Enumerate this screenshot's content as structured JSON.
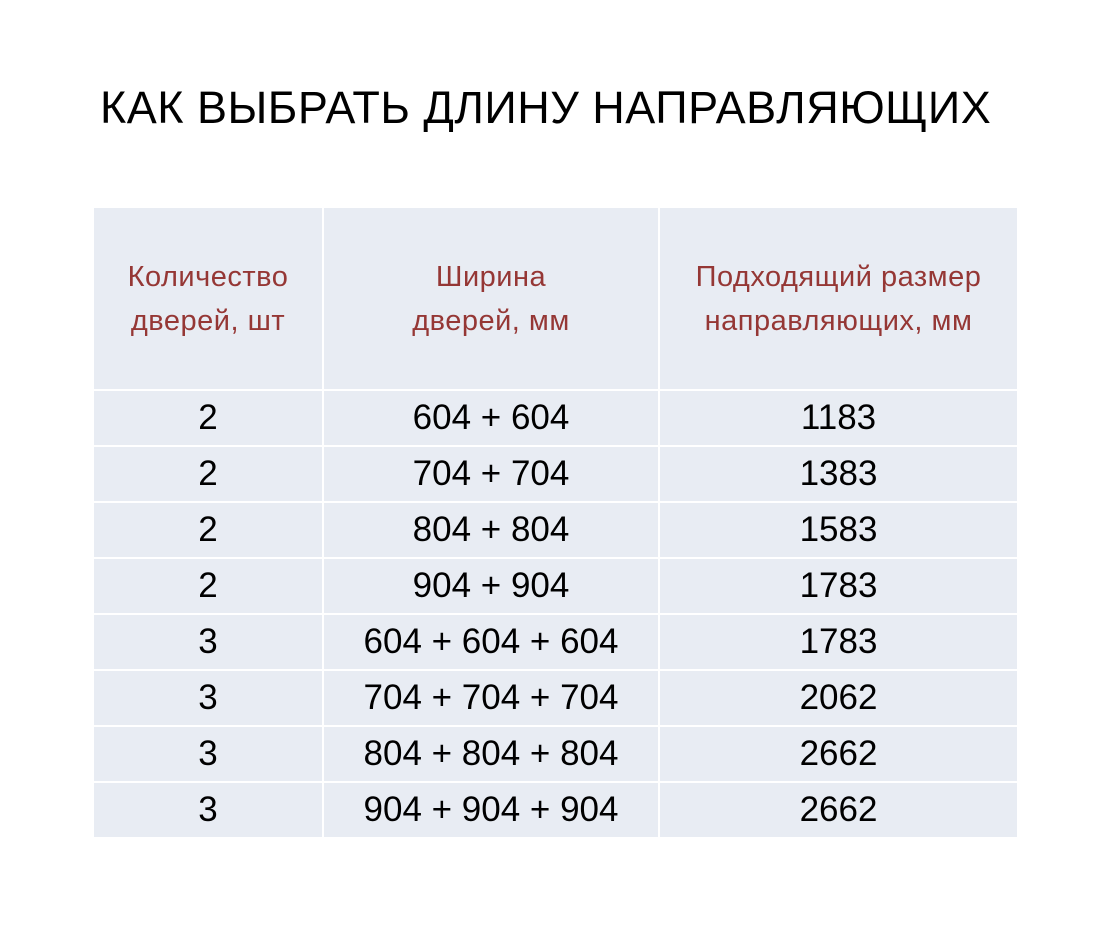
{
  "title": "КАК ВЫБРАТЬ ДЛИНУ НАПРАВЛЯЮЩИХ",
  "table": {
    "headers": [
      [
        "Количество",
        "дверей, шт"
      ],
      [
        "Ширина",
        "дверей, мм"
      ],
      [
        "Подходящий размер",
        "направляющих, мм"
      ]
    ],
    "rows": [
      [
        "2",
        "604 + 604",
        "1183"
      ],
      [
        "2",
        "704 + 704",
        "1383"
      ],
      [
        "2",
        "804 + 804",
        "1583"
      ],
      [
        "2",
        "904 + 904",
        "1783"
      ],
      [
        "3",
        "604 + 604 + 604",
        "1783"
      ],
      [
        "3",
        "704 + 704 + 704",
        "2062"
      ],
      [
        "3",
        "804 + 804 + 804",
        "2662"
      ],
      [
        "3",
        "904 + 904 + 904",
        "2662"
      ]
    ]
  },
  "colors": {
    "header_text": "#953735",
    "cell_background": "#e8ecf3"
  }
}
